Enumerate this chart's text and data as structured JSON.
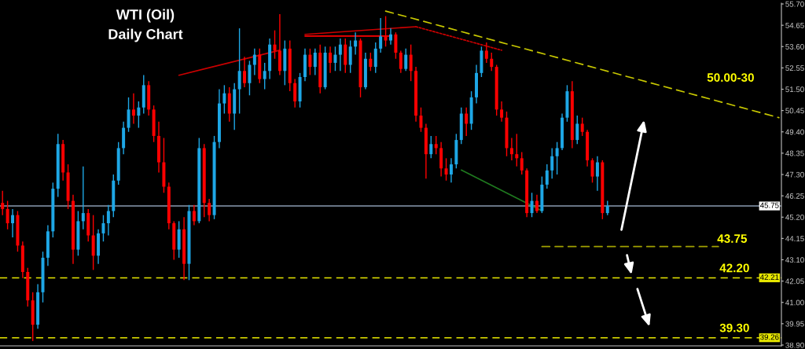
{
  "chart_data": {
    "type": "candlestick",
    "title": "WTI (Oil)",
    "subtitle": "Daily Chart",
    "categories": [
      null,
      null,
      null,
      null,
      null,
      null,
      null,
      null,
      null,
      null,
      null,
      null,
      null,
      null,
      null,
      null,
      null,
      null,
      null,
      null,
      null,
      null,
      null,
      null,
      null,
      null,
      null,
      null,
      null,
      null,
      null,
      null,
      null,
      null,
      null,
      null,
      null,
      null,
      null,
      null,
      null,
      null,
      null,
      null,
      null,
      null,
      null,
      null,
      null,
      null,
      null,
      null,
      null,
      null,
      null,
      null,
      null,
      null,
      null,
      null,
      null,
      null,
      null,
      null,
      null,
      null,
      null,
      null,
      null,
      null,
      null,
      null,
      null,
      null,
      null,
      null,
      null,
      null,
      null,
      null,
      null,
      null,
      null,
      null,
      null,
      null,
      null,
      null,
      null,
      null,
      null,
      null,
      null,
      null,
      null,
      null,
      null,
      null,
      null,
      null,
      null,
      null,
      null,
      null,
      null,
      null,
      null,
      null,
      null,
      null,
      null,
      null,
      null,
      null,
      null,
      null,
      null,
      null,
      null,
      null,
      null,
      null,
      null,
      null,
      null,
      null,
      null,
      null,
      null,
      null,
      null,
      null,
      null,
      null,
      null,
      null,
      null,
      null,
      null,
      null,
      null,
      null,
      null,
      null,
      null,
      null,
      null,
      null,
      null,
      null,
      null,
      null,
      null,
      null,
      null
    ],
    "ohlc": [
      [
        45.9,
        46.5,
        45.3,
        45.6
      ],
      [
        45.6,
        46.0,
        44.6,
        44.9
      ],
      [
        44.9,
        45.6,
        44.2,
        45.3
      ],
      [
        45.3,
        45.5,
        43.5,
        43.8
      ],
      [
        43.8,
        44.0,
        42.2,
        42.5
      ],
      [
        42.5,
        42.7,
        40.8,
        41.1
      ],
      [
        41.1,
        41.5,
        39.1,
        39.9
      ],
      [
        39.9,
        41.9,
        39.7,
        41.5
      ],
      [
        41.5,
        43.5,
        41.0,
        43.2
      ],
      [
        43.2,
        44.8,
        42.8,
        44.5
      ],
      [
        44.5,
        46.9,
        44.2,
        46.6
      ],
      [
        46.6,
        49.3,
        46.2,
        48.8
      ],
      [
        48.8,
        49.0,
        47.0,
        47.4
      ],
      [
        47.4,
        47.8,
        45.6,
        46.0
      ],
      [
        46.0,
        46.3,
        42.9,
        43.6
      ],
      [
        43.6,
        45.5,
        43.3,
        45.0
      ],
      [
        45.0,
        47.7,
        44.6,
        45.4
      ],
      [
        45.4,
        45.6,
        44.0,
        44.3
      ],
      [
        44.3,
        45.3,
        42.6,
        43.3
      ],
      [
        43.3,
        44.6,
        42.9,
        44.4
      ],
      [
        44.4,
        45.3,
        44.0,
        44.9
      ],
      [
        44.9,
        45.8,
        44.3,
        45.5
      ],
      [
        45.5,
        47.3,
        45.2,
        47.0
      ],
      [
        47.0,
        48.9,
        46.8,
        48.6
      ],
      [
        48.6,
        49.9,
        48.3,
        49.6
      ],
      [
        49.6,
        51.1,
        49.4,
        50.5
      ],
      [
        50.5,
        51.3,
        49.8,
        50.2
      ],
      [
        50.2,
        50.9,
        49.6,
        50.6
      ],
      [
        50.6,
        52.2,
        50.3,
        51.7
      ],
      [
        51.7,
        51.9,
        50.2,
        50.5
      ],
      [
        50.5,
        50.7,
        48.9,
        49.2
      ],
      [
        49.2,
        49.9,
        47.4,
        47.9
      ],
      [
        47.9,
        49.1,
        46.4,
        46.7
      ],
      [
        46.7,
        46.9,
        44.6,
        44.9
      ],
      [
        44.9,
        45.0,
        43.1,
        43.6
      ],
      [
        43.6,
        45.0,
        43.2,
        44.6
      ],
      [
        44.6,
        45.2,
        42.1,
        42.9
      ],
      [
        42.9,
        45.8,
        42.1,
        45.5
      ],
      [
        45.5,
        45.8,
        44.8,
        45.0
      ],
      [
        45.0,
        49.1,
        44.9,
        48.6
      ],
      [
        48.6,
        48.8,
        45.2,
        45.9
      ],
      [
        45.9,
        46.1,
        45.0,
        45.3
      ],
      [
        45.3,
        49.2,
        45.1,
        48.9
      ],
      [
        48.9,
        51.5,
        48.6,
        50.8
      ],
      [
        50.8,
        51.7,
        50.3,
        51.3
      ],
      [
        51.3,
        51.6,
        49.9,
        50.3
      ],
      [
        50.3,
        51.8,
        49.5,
        51.5
      ],
      [
        51.5,
        54.5,
        50.3,
        52.4
      ],
      [
        52.4,
        53.1,
        51.6,
        51.8
      ],
      [
        51.8,
        52.9,
        51.2,
        52.7
      ],
      [
        52.7,
        53.5,
        52.2,
        53.2
      ],
      [
        53.2,
        53.5,
        51.8,
        52.0
      ],
      [
        52.0,
        52.8,
        51.5,
        52.4
      ],
      [
        52.4,
        54.0,
        52.0,
        53.7
      ],
      [
        53.7,
        54.4,
        53.0,
        53.4
      ],
      [
        53.4,
        55.2,
        52.2,
        52.4
      ],
      [
        52.4,
        53.9,
        51.7,
        53.5
      ],
      [
        53.5,
        53.9,
        51.4,
        51.8
      ],
      [
        51.8,
        52.0,
        50.6,
        50.9
      ],
      [
        50.9,
        52.3,
        50.6,
        52.1
      ],
      [
        52.1,
        53.5,
        51.9,
        53.2
      ],
      [
        53.2,
        53.5,
        52.2,
        52.6
      ],
      [
        52.6,
        53.5,
        52.2,
        53.3
      ],
      [
        53.3,
        53.7,
        51.3,
        51.6
      ],
      [
        51.6,
        53.6,
        51.5,
        53.3
      ],
      [
        53.3,
        53.6,
        52.3,
        52.8
      ],
      [
        52.8,
        53.6,
        52.4,
        53.2
      ],
      [
        53.2,
        54.0,
        52.4,
        53.7
      ],
      [
        53.7,
        54.0,
        52.3,
        52.7
      ],
      [
        52.7,
        53.9,
        52.3,
        53.6
      ],
      [
        53.6,
        54.3,
        53.2,
        53.9
      ],
      [
        53.9,
        54.0,
        51.1,
        51.6
      ],
      [
        51.6,
        53.3,
        51.5,
        53.0
      ],
      [
        53.0,
        53.3,
        52.4,
        52.6
      ],
      [
        52.6,
        53.8,
        52.3,
        53.5
      ],
      [
        53.5,
        55.0,
        53.3,
        54.1
      ],
      [
        54.1,
        55.1,
        53.6,
        53.9
      ],
      [
        53.9,
        54.5,
        53.7,
        54.2
      ],
      [
        54.2,
        54.3,
        53.0,
        53.3
      ],
      [
        53.3,
        53.4,
        52.3,
        52.5
      ],
      [
        52.5,
        53.5,
        52.4,
        53.2
      ],
      [
        53.2,
        53.7,
        51.9,
        52.4
      ],
      [
        52.4,
        52.6,
        49.9,
        50.2
      ],
      [
        50.2,
        50.6,
        49.4,
        49.6
      ],
      [
        49.6,
        49.8,
        47.1,
        48.3
      ],
      [
        48.3,
        49.2,
        48.1,
        48.8
      ],
      [
        48.8,
        49.2,
        48.3,
        48.6
      ],
      [
        48.6,
        48.9,
        47.2,
        47.6
      ],
      [
        47.6,
        48.1,
        47.0,
        47.3
      ],
      [
        47.3,
        48.1,
        46.9,
        47.8
      ],
      [
        47.8,
        49.3,
        47.6,
        49.0
      ],
      [
        49.0,
        50.6,
        48.8,
        50.3
      ],
      [
        50.3,
        50.6,
        49.2,
        49.8
      ],
      [
        49.8,
        51.4,
        49.5,
        51.1
      ],
      [
        51.1,
        52.7,
        50.8,
        52.3
      ],
      [
        52.3,
        53.6,
        52.1,
        53.4
      ],
      [
        53.4,
        53.8,
        52.8,
        53.0
      ],
      [
        53.0,
        53.3,
        52.4,
        52.6
      ],
      [
        52.6,
        52.7,
        50.2,
        50.5
      ],
      [
        50.5,
        50.9,
        49.9,
        50.1
      ],
      [
        50.1,
        50.4,
        48.2,
        48.6
      ],
      [
        48.6,
        49.1,
        48.0,
        48.3
      ],
      [
        48.3,
        49.3,
        47.7,
        48.1
      ],
      [
        48.1,
        48.4,
        47.3,
        47.5
      ],
      [
        47.5,
        47.6,
        45.2,
        45.4
      ],
      [
        45.4,
        46.4,
        45.2,
        46.0
      ],
      [
        46.0,
        46.3,
        45.4,
        45.5
      ],
      [
        45.5,
        47.2,
        45.4,
        46.8
      ],
      [
        46.8,
        47.8,
        46.6,
        47.5
      ],
      [
        47.5,
        48.6,
        47.1,
        48.2
      ],
      [
        48.2,
        48.9,
        47.3,
        48.6
      ],
      [
        48.6,
        50.3,
        48.5,
        50.1
      ],
      [
        50.1,
        51.7,
        49.9,
        51.4
      ],
      [
        51.4,
        51.9,
        48.6,
        49.0
      ],
      [
        49.0,
        50.2,
        48.8,
        49.8
      ],
      [
        49.8,
        50.1,
        49.2,
        49.4
      ],
      [
        49.4,
        49.5,
        47.7,
        48.0
      ],
      [
        48.0,
        48.1,
        46.9,
        47.2
      ],
      [
        47.2,
        48.2,
        46.5,
        47.9
      ],
      [
        47.9,
        48.0,
        45.1,
        45.4
      ],
      [
        45.4,
        46.0,
        45.3,
        45.75
      ],
      null,
      null,
      null,
      null,
      null,
      null,
      null,
      null,
      null,
      null,
      null,
      null,
      null,
      null,
      null,
      null,
      null,
      null,
      null,
      null,
      null,
      null,
      null,
      null,
      null,
      null,
      null,
      null,
      null,
      null,
      null,
      null,
      null,
      null
    ],
    "series": [
      {
        "type": "line",
        "color": "#cc0000",
        "line_style": "solid",
        "values": [
          null,
          null,
          null,
          null,
          null,
          null,
          null,
          null,
          null,
          null,
          null,
          null,
          null,
          null,
          null,
          null,
          null,
          null,
          null,
          null,
          null,
          null,
          null,
          null,
          null,
          null,
          null,
          null,
          null,
          null,
          null,
          null,
          null,
          null,
          null,
          52.19,
          null,
          null,
          null,
          null,
          null,
          null,
          null,
          null,
          null,
          null,
          null,
          null,
          null,
          null,
          null,
          null,
          null,
          null,
          null,
          53.42,
          null,
          null,
          null,
          null,
          null,
          null,
          null,
          null,
          null,
          null,
          null,
          null,
          null,
          null,
          null,
          null,
          null,
          null,
          null,
          null,
          null,
          null,
          null,
          null,
          null,
          null,
          null,
          null,
          null,
          null,
          null,
          null,
          null,
          null,
          null,
          null,
          null,
          null,
          null,
          null,
          null,
          null,
          null,
          null,
          null,
          null,
          null,
          null,
          null,
          null,
          null,
          null,
          null,
          null,
          null,
          null,
          null,
          null,
          null,
          null,
          null,
          null,
          null,
          null,
          null,
          null,
          null,
          null,
          null,
          null,
          null,
          null,
          null,
          null,
          null,
          null,
          null,
          null,
          null,
          null,
          null,
          null,
          null,
          null,
          null,
          null,
          null,
          null,
          null,
          null,
          null,
          null,
          null,
          null,
          null,
          null,
          null,
          null,
          null
        ]
      },
      {
        "type": "line",
        "color": "#ff0000",
        "line_style": "solid",
        "values": [
          null,
          null,
          null,
          null,
          null,
          null,
          null,
          null,
          null,
          null,
          null,
          null,
          null,
          null,
          null,
          null,
          null,
          null,
          null,
          null,
          null,
          null,
          null,
          null,
          null,
          null,
          null,
          null,
          null,
          null,
          null,
          null,
          null,
          null,
          null,
          null,
          null,
          null,
          null,
          null,
          null,
          null,
          null,
          null,
          null,
          null,
          null,
          null,
          null,
          null,
          null,
          null,
          null,
          null,
          null,
          null,
          null,
          null,
          null,
          null,
          54.12,
          null,
          null,
          null,
          null,
          null,
          null,
          null,
          null,
          null,
          null,
          null,
          null,
          null,
          null,
          null,
          null,
          54.12,
          null,
          null,
          null,
          null,
          null,
          null,
          null,
          null,
          null,
          null,
          null,
          null,
          null,
          null,
          null,
          null,
          null,
          null,
          null,
          null,
          null,
          null,
          null,
          null,
          null,
          null,
          null,
          null,
          null,
          null,
          null,
          null,
          null,
          null,
          null,
          null,
          null,
          null,
          null,
          null,
          null,
          null,
          null,
          null,
          null,
          null,
          null,
          null,
          null,
          null,
          null,
          null,
          null,
          null,
          null,
          null,
          null,
          null,
          null,
          null,
          null,
          null,
          null,
          null,
          null,
          null,
          null,
          null,
          null,
          null,
          null,
          null,
          null,
          null,
          null,
          null,
          null
        ]
      },
      {
        "type": "line",
        "color": "#cc0000",
        "line_style": "solid",
        "values": [
          null,
          null,
          null,
          null,
          null,
          null,
          null,
          null,
          null,
          null,
          null,
          null,
          null,
          null,
          null,
          null,
          null,
          null,
          null,
          null,
          null,
          null,
          null,
          null,
          null,
          null,
          null,
          null,
          null,
          null,
          null,
          null,
          null,
          null,
          null,
          null,
          null,
          null,
          null,
          null,
          null,
          null,
          null,
          null,
          null,
          null,
          null,
          null,
          null,
          null,
          null,
          null,
          null,
          null,
          null,
          null,
          null,
          null,
          null,
          null,
          54.2,
          null,
          null,
          null,
          null,
          null,
          null,
          null,
          null,
          null,
          null,
          null,
          null,
          null,
          null,
          null,
          null,
          null,
          null,
          null,
          null,
          null,
          54.58,
          null,
          null,
          null,
          null,
          null,
          null,
          null,
          null,
          null,
          null,
          null,
          null,
          null,
          null,
          null,
          null,
          null,
          null,
          null,
          null,
          null,
          null,
          null,
          null,
          null,
          null,
          null,
          null,
          null,
          null,
          null,
          null,
          null,
          null,
          null,
          null,
          null,
          null,
          null,
          null,
          null,
          null,
          null,
          null,
          null,
          null,
          null,
          null,
          null,
          null,
          null,
          null,
          null,
          null,
          null,
          null,
          null,
          null,
          null,
          null,
          null,
          null,
          null,
          null,
          null,
          null,
          null,
          null,
          null,
          null,
          null,
          null
        ]
      },
      {
        "type": "line",
        "color": "#cc0000",
        "line_style": "dotted",
        "values": [
          null,
          null,
          null,
          null,
          null,
          null,
          null,
          null,
          null,
          null,
          null,
          null,
          null,
          null,
          null,
          null,
          null,
          null,
          null,
          null,
          null,
          null,
          null,
          null,
          null,
          null,
          null,
          null,
          null,
          null,
          null,
          null,
          null,
          null,
          null,
          null,
          null,
          null,
          null,
          null,
          null,
          null,
          null,
          null,
          null,
          null,
          null,
          null,
          null,
          null,
          null,
          null,
          null,
          null,
          null,
          null,
          null,
          null,
          null,
          null,
          null,
          null,
          null,
          null,
          null,
          null,
          null,
          null,
          null,
          null,
          null,
          null,
          null,
          null,
          null,
          null,
          null,
          null,
          null,
          null,
          null,
          null,
          54.58,
          null,
          null,
          null,
          null,
          null,
          null,
          null,
          null,
          null,
          null,
          null,
          null,
          null,
          null,
          null,
          null,
          53.42,
          null,
          null,
          null,
          null,
          null,
          null,
          null,
          null,
          null,
          null,
          null,
          null,
          null,
          null,
          null,
          null,
          null,
          null,
          null,
          null,
          null,
          null,
          null,
          null,
          null,
          null,
          null,
          null,
          null,
          null,
          null,
          null,
          null,
          null,
          null,
          null,
          null,
          null,
          null,
          null,
          null,
          null,
          null,
          null,
          null,
          null,
          null,
          null,
          null,
          null,
          null,
          null,
          null,
          null,
          null
        ]
      },
      {
        "type": "line",
        "color": "#1f7a1f",
        "line_style": "solid",
        "values": [
          null,
          null,
          null,
          null,
          null,
          null,
          null,
          null,
          null,
          null,
          null,
          null,
          null,
          null,
          null,
          null,
          null,
          null,
          null,
          null,
          null,
          null,
          null,
          null,
          null,
          null,
          null,
          null,
          null,
          null,
          null,
          null,
          null,
          null,
          null,
          null,
          null,
          null,
          null,
          null,
          null,
          null,
          null,
          null,
          null,
          null,
          null,
          null,
          null,
          null,
          null,
          null,
          null,
          null,
          null,
          null,
          null,
          null,
          null,
          null,
          null,
          null,
          null,
          null,
          null,
          null,
          null,
          null,
          null,
          null,
          null,
          null,
          null,
          null,
          null,
          null,
          null,
          null,
          null,
          null,
          null,
          null,
          null,
          null,
          null,
          null,
          null,
          null,
          null,
          null,
          null,
          47.52,
          null,
          null,
          null,
          null,
          null,
          null,
          null,
          null,
          null,
          null,
          null,
          null,
          null,
          null,
          null,
          45.51,
          null,
          null,
          null,
          null,
          null,
          null,
          null,
          null,
          null,
          null,
          null,
          null,
          null,
          null,
          null,
          null,
          null,
          null,
          null,
          null,
          null,
          null,
          null,
          null,
          null,
          null,
          null,
          null,
          null,
          null,
          null,
          null,
          null,
          null,
          null,
          null,
          null,
          null,
          null,
          null,
          null,
          null,
          null,
          null,
          null,
          null,
          null
        ]
      },
      {
        "type": "line",
        "color": "#c8c800",
        "line_style": "dashed",
        "values": [
          null,
          null,
          null,
          null,
          null,
          null,
          null,
          null,
          null,
          null,
          null,
          null,
          null,
          null,
          null,
          null,
          null,
          null,
          null,
          null,
          null,
          null,
          null,
          null,
          null,
          null,
          null,
          null,
          null,
          null,
          null,
          null,
          null,
          null,
          null,
          null,
          null,
          null,
          null,
          null,
          null,
          null,
          null,
          null,
          null,
          null,
          null,
          null,
          null,
          null,
          null,
          null,
          null,
          null,
          null,
          null,
          null,
          null,
          null,
          null,
          null,
          null,
          null,
          null,
          null,
          null,
          null,
          null,
          null,
          null,
          null,
          null,
          null,
          null,
          null,
          null,
          55.35,
          null,
          null,
          null,
          null,
          null,
          null,
          null,
          null,
          null,
          null,
          null,
          null,
          null,
          null,
          null,
          null,
          null,
          null,
          null,
          null,
          null,
          null,
          null,
          null,
          null,
          null,
          null,
          null,
          null,
          null,
          null,
          null,
          null,
          null,
          null,
          null,
          null,
          null,
          null,
          null,
          null,
          null,
          null,
          null,
          null,
          null,
          null,
          null,
          null,
          null,
          null,
          null,
          null,
          null,
          null,
          null,
          null,
          null,
          null,
          null,
          null,
          null,
          null,
          null,
          null,
          null,
          null,
          null,
          null,
          null,
          null,
          null,
          null,
          null,
          null,
          null,
          null,
          50.1
        ]
      },
      {
        "type": "line",
        "color": "#a0a000",
        "line_style": "dashed",
        "values": [
          null,
          null,
          null,
          null,
          null,
          null,
          null,
          null,
          null,
          null,
          null,
          null,
          null,
          null,
          null,
          null,
          null,
          null,
          null,
          null,
          null,
          null,
          null,
          null,
          null,
          null,
          null,
          null,
          null,
          null,
          null,
          null,
          null,
          null,
          null,
          null,
          null,
          null,
          null,
          null,
          null,
          null,
          null,
          null,
          null,
          null,
          null,
          null,
          null,
          null,
          null,
          null,
          null,
          null,
          null,
          null,
          null,
          null,
          null,
          null,
          null,
          null,
          null,
          null,
          null,
          null,
          null,
          null,
          null,
          null,
          null,
          null,
          null,
          null,
          null,
          null,
          null,
          null,
          null,
          null,
          null,
          null,
          null,
          null,
          null,
          null,
          null,
          null,
          null,
          null,
          null,
          null,
          null,
          null,
          null,
          null,
          null,
          null,
          null,
          null,
          null,
          null,
          null,
          null,
          null,
          null,
          null,
          43.75,
          null,
          null,
          null,
          null,
          null,
          null,
          null,
          null,
          null,
          null,
          null,
          null,
          null,
          null,
          null,
          null,
          null,
          null,
          null,
          null,
          null,
          null,
          null,
          null,
          null,
          null,
          null,
          null,
          null,
          null,
          null,
          null,
          null,
          null,
          43.75,
          null,
          null,
          null,
          null,
          null,
          null,
          null,
          null,
          null,
          null,
          null,
          null
        ]
      }
    ],
    "ylim": [
      38.86,
      55.74
    ],
    "yticks": [
      {
        "value": 55.7,
        "label": "55.70"
      },
      {
        "value": 54.65,
        "label": "54.65"
      },
      {
        "value": 53.6,
        "label": "53.60"
      },
      {
        "value": 52.55,
        "label": "52.55"
      },
      {
        "value": 51.5,
        "label": "51.50"
      },
      {
        "value": 50.45,
        "label": "50.45"
      },
      {
        "value": 49.4,
        "label": "49.40"
      },
      {
        "value": 48.35,
        "label": "48.35"
      },
      {
        "value": 47.3,
        "label": "47.30"
      },
      {
        "value": 46.25,
        "label": "46.25"
      },
      {
        "value": 45.2,
        "label": "45.20"
      },
      {
        "value": 44.15,
        "label": "44.15"
      },
      {
        "value": 43.1,
        "label": "43.10"
      },
      {
        "value": 42.05,
        "label": "42.05"
      },
      {
        "value": 41.0,
        "label": "41.00"
      },
      {
        "value": 39.95,
        "label": "39.95"
      },
      {
        "value": 38.9,
        "label": "38.90"
      }
    ],
    "ref_lines": [
      {
        "axis": "y",
        "value": 45.75,
        "label": "45.75",
        "color": "#8a9bb0",
        "line_style": "solid"
      },
      {
        "axis": "y",
        "value": 42.21,
        "label": "42.21",
        "color": "#e6e600",
        "line_style": "dashed"
      },
      {
        "axis": "y",
        "value": 39.26,
        "label": "39.26",
        "color": "#e6e600",
        "line_style": "dashed"
      }
    ],
    "annotations": [
      "50.00-30",
      "43.75",
      {
        "text": "42.20",
        "y": 42.21
      },
      {
        "text": "39.30",
        "y": 39.26
      }
    ],
    "tick_labels": "y"
  }
}
